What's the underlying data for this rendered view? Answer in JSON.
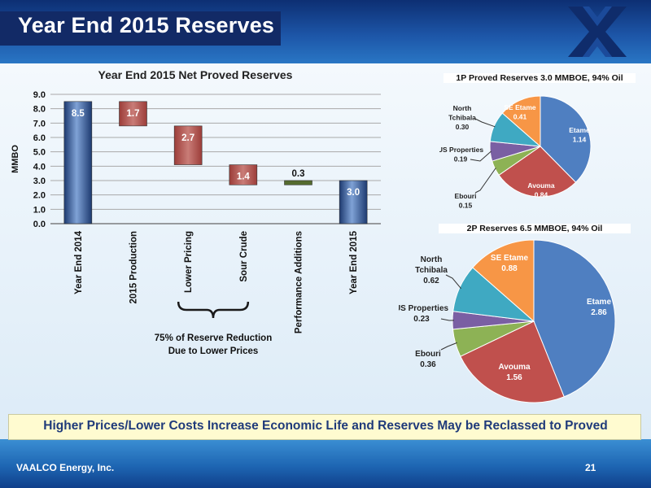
{
  "slide": {
    "title": "Year End 2015 Reserves",
    "banner": "Higher Prices/Lower Costs Increase Economic Life and Reserves May be Reclassed to Proved",
    "footer_company": "VAALCO Energy, Inc.",
    "page_number": "21",
    "logo_icon": "vaalco-logo-icon"
  },
  "chart_data": [
    {
      "type": "bar",
      "subtype": "waterfall",
      "title": "Year End 2015 Net Proved Reserves",
      "ylabel": "MMBO",
      "xlabel": "",
      "ylim": [
        0,
        9
      ],
      "yticks": [
        "0.0",
        "1.0",
        "2.0",
        "3.0",
        "4.0",
        "5.0",
        "6.0",
        "7.0",
        "8.0",
        "9.0"
      ],
      "grid": true,
      "categories": [
        "Year End 2014",
        "2015 Production",
        "Lower Pricing",
        "Sour Crude",
        "Performance Additions",
        "Year End 2015"
      ],
      "bars": [
        {
          "category": "Year End 2014",
          "start": 0,
          "end": 8.5,
          "label": "8.5",
          "kind": "total",
          "color": "#2a4f8f"
        },
        {
          "category": "2015 Production",
          "start": 8.5,
          "end": 6.8,
          "label": "1.7",
          "kind": "decrease",
          "color": "#b5554f"
        },
        {
          "category": "Lower Pricing",
          "start": 6.8,
          "end": 4.1,
          "label": "2.7",
          "kind": "decrease",
          "color": "#b5554f"
        },
        {
          "category": "Sour Crude",
          "start": 4.1,
          "end": 2.7,
          "label": "1.4",
          "kind": "decrease",
          "color": "#b5554f"
        },
        {
          "category": "Performance Additions",
          "start": 2.7,
          "end": 3.0,
          "label": "0.3",
          "kind": "increase",
          "color": "#556b2f"
        },
        {
          "category": "Year End 2015",
          "start": 0,
          "end": 3.0,
          "label": "3.0",
          "kind": "total",
          "color": "#2a4f8f"
        }
      ],
      "annotation": {
        "lines": [
          "75% of Reserve Reduction",
          "Due to Lower Prices"
        ],
        "spans": [
          "Lower Pricing",
          "Sour Crude"
        ]
      }
    },
    {
      "type": "pie",
      "title": "1P Proved Reserves 3.0 MMBOE, 94% Oil",
      "slices": [
        {
          "name": "Etame",
          "value": 1.14,
          "label": "Etame",
          "value_label": "1.14",
          "color": "#4f7fc1"
        },
        {
          "name": "Avouma",
          "value": 0.84,
          "label": "Avouma",
          "value_label": "0.84",
          "color": "#c0504d"
        },
        {
          "name": "Ebouri",
          "value": 0.15,
          "label": "Ebouri",
          "value_label": "0.15",
          "color": "#8db255"
        },
        {
          "name": "US Properties",
          "value": 0.19,
          "label": "US Properties",
          "value_label": "0.19",
          "color": "#7a5fa3"
        },
        {
          "name": "North Tchibala",
          "value": 0.3,
          "label": "North Tchibala",
          "value_label": "0.30",
          "color": "#3fa9c2"
        },
        {
          "name": "SE Etame",
          "value": 0.41,
          "label": "SE Etame",
          "value_label": "0.41",
          "color": "#f79646"
        }
      ]
    },
    {
      "type": "pie",
      "title": "2P Reserves 6.5 MMBOE, 94% Oil",
      "slices": [
        {
          "name": "Etame",
          "value": 2.86,
          "label": "Etame",
          "value_label": "2.86",
          "color": "#4f7fc1"
        },
        {
          "name": "Avouma",
          "value": 1.56,
          "label": "Avouma",
          "value_label": "1.56",
          "color": "#c0504d"
        },
        {
          "name": "Ebouri",
          "value": 0.36,
          "label": "Ebouri",
          "value_label": "0.36",
          "color": "#8db255"
        },
        {
          "name": "US Properties",
          "value": 0.23,
          "label": "US Properties",
          "value_label": "0.23",
          "color": "#7a5fa3"
        },
        {
          "name": "North Tchibala",
          "value": 0.62,
          "label": "North Tchibala",
          "value_label": "0.62",
          "color": "#3fa9c2"
        },
        {
          "name": "SE Etame",
          "value": 0.88,
          "label": "SE Etame",
          "value_label": "0.88",
          "color": "#f79646"
        }
      ]
    }
  ]
}
